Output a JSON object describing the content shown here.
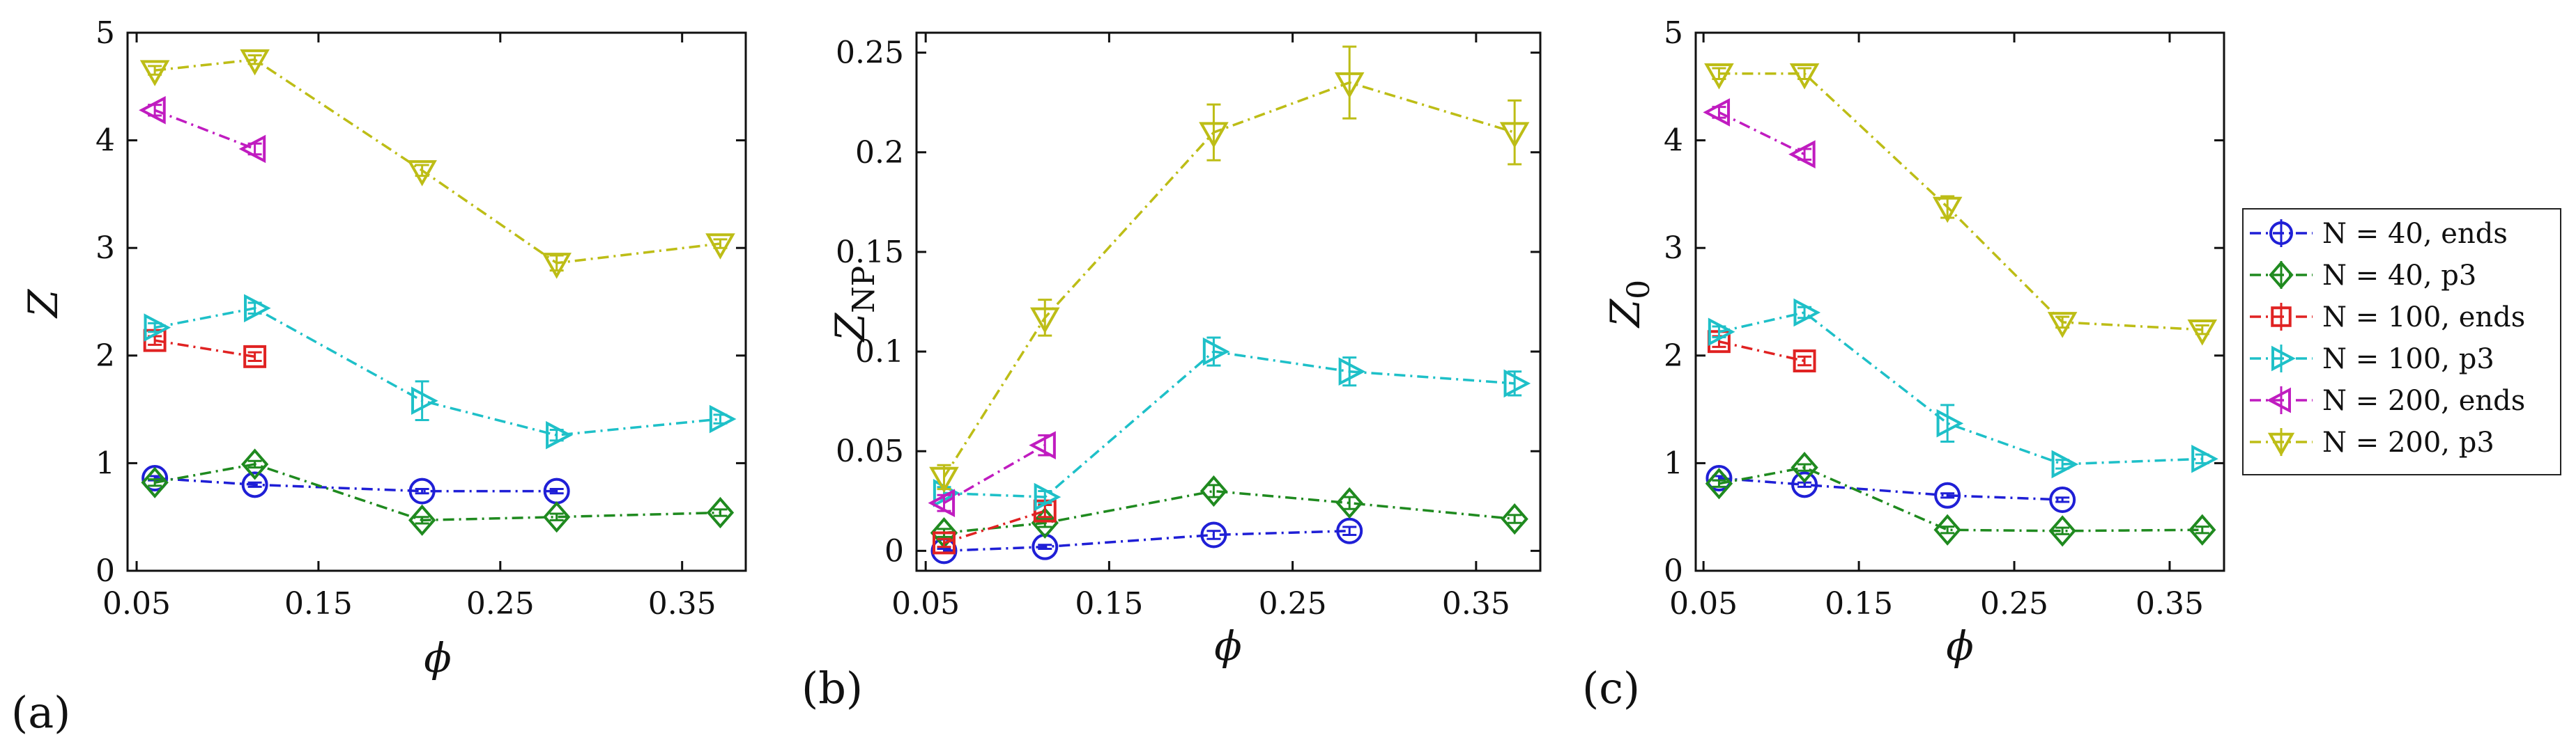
{
  "figure": {
    "panel_labels": [
      "(a)",
      "(b)",
      "(c)"
    ]
  },
  "legend": {
    "items": [
      {
        "label": "N = 40, ends",
        "color": "#1f1fd6",
        "marker": "circle"
      },
      {
        "label": "N = 40, p3",
        "color": "#1f8a1f",
        "marker": "diamond"
      },
      {
        "label": "N = 100, ends",
        "color": "#e02222",
        "marker": "square"
      },
      {
        "label": "N = 100, p3",
        "color": "#1ec0c8",
        "marker": "triangle-right"
      },
      {
        "label": "N = 200, ends",
        "color": "#c01cc0",
        "marker": "triangle-left"
      },
      {
        "label": "N = 200, p3",
        "color": "#bdbd16",
        "marker": "triangle-down"
      }
    ]
  },
  "chart_data": [
    {
      "type": "line",
      "panel": "(a)",
      "xlabel": "ϕ",
      "ylabel": "Z",
      "ylabel_sub": "",
      "xlim": [
        0.045,
        0.385
      ],
      "ylim": [
        0,
        5
      ],
      "xticks": [
        0.05,
        0.15,
        0.25,
        0.35
      ],
      "xtick_labels": [
        "0.05",
        "0.15",
        "0.25",
        "0.35"
      ],
      "yticks": [
        0,
        1,
        2,
        3,
        4,
        5
      ],
      "ytick_labels": [
        "0",
        "1",
        "2",
        "3",
        "4",
        "5"
      ],
      "series": [
        {
          "name": "N = 40, ends",
          "x": [
            0.06,
            0.115,
            0.207,
            0.281
          ],
          "y": [
            0.86,
            0.8,
            0.74,
            0.74
          ],
          "err": [
            0.02,
            0.02,
            0.02,
            0.02
          ]
        },
        {
          "name": "N = 40, p3",
          "x": [
            0.06,
            0.115,
            0.207,
            0.281,
            0.371
          ],
          "y": [
            0.82,
            0.99,
            0.47,
            0.5,
            0.54
          ],
          "err": [
            0.03,
            0.03,
            0.03,
            0.03,
            0.03
          ]
        },
        {
          "name": "N = 100, ends",
          "x": [
            0.06,
            0.115
          ],
          "y": [
            2.14,
            1.99
          ],
          "err": [
            0.04,
            0.04
          ]
        },
        {
          "name": "N = 100, p3",
          "x": [
            0.06,
            0.115,
            0.207,
            0.281,
            0.371
          ],
          "y": [
            2.26,
            2.44,
            1.58,
            1.26,
            1.41
          ],
          "err": [
            0.04,
            0.05,
            0.18,
            0.05,
            0.04
          ]
        },
        {
          "name": "N = 200, ends",
          "x": [
            0.06,
            0.115
          ],
          "y": [
            4.28,
            3.92
          ],
          "err": [
            0.05,
            0.05
          ]
        },
        {
          "name": "N = 200, p3",
          "x": [
            0.06,
            0.115,
            0.207,
            0.281,
            0.371
          ],
          "y": [
            4.65,
            4.75,
            3.72,
            2.86,
            3.04
          ],
          "err": [
            0.04,
            0.04,
            0.05,
            0.07,
            0.04
          ]
        }
      ]
    },
    {
      "type": "line",
      "panel": "(b)",
      "xlabel": "ϕ",
      "ylabel": "Z",
      "ylabel_sub": "NP",
      "xlim": [
        0.045,
        0.385
      ],
      "ylim": [
        -0.01,
        0.26
      ],
      "xticks": [
        0.05,
        0.15,
        0.25,
        0.35
      ],
      "xtick_labels": [
        "0.05",
        "0.15",
        "0.25",
        "0.35"
      ],
      "yticks": [
        0,
        0.05,
        0.1,
        0.15,
        0.2,
        0.25
      ],
      "ytick_labels": [
        "0",
        "0.05",
        "0.1",
        "0.15",
        "0.2",
        "0.25"
      ],
      "series": [
        {
          "name": "N = 40, ends",
          "x": [
            0.06,
            0.115,
            0.207,
            0.281
          ],
          "y": [
            0.0,
            0.002,
            0.008,
            0.01
          ],
          "err": [
            0.001,
            0.001,
            0.002,
            0.002
          ]
        },
        {
          "name": "N = 40, p3",
          "x": [
            0.06,
            0.115,
            0.207,
            0.281,
            0.371
          ],
          "y": [
            0.009,
            0.014,
            0.03,
            0.024,
            0.016
          ],
          "err": [
            0.002,
            0.002,
            0.003,
            0.003,
            0.002
          ]
        },
        {
          "name": "N = 100, ends",
          "x": [
            0.06,
            0.115
          ],
          "y": [
            0.004,
            0.02
          ],
          "err": [
            0.002,
            0.003
          ]
        },
        {
          "name": "N = 100, p3",
          "x": [
            0.06,
            0.115,
            0.207,
            0.281,
            0.371
          ],
          "y": [
            0.029,
            0.027,
            0.1,
            0.09,
            0.084
          ],
          "err": [
            0.003,
            0.003,
            0.007,
            0.007,
            0.006
          ]
        },
        {
          "name": "N = 200, ends",
          "x": [
            0.06,
            0.115
          ],
          "y": [
            0.024,
            0.053
          ],
          "err": [
            0.004,
            0.005
          ]
        },
        {
          "name": "N = 200, p3",
          "x": [
            0.06,
            0.115,
            0.207,
            0.281,
            0.371
          ],
          "y": [
            0.037,
            0.117,
            0.21,
            0.235,
            0.21
          ],
          "err": [
            0.006,
            0.009,
            0.014,
            0.018,
            0.016
          ]
        }
      ]
    },
    {
      "type": "line",
      "panel": "(c)",
      "xlabel": "ϕ",
      "ylabel": "Z",
      "ylabel_sub": "0",
      "xlim": [
        0.045,
        0.385
      ],
      "ylim": [
        0,
        5
      ],
      "xticks": [
        0.05,
        0.15,
        0.25,
        0.35
      ],
      "xtick_labels": [
        "0.05",
        "0.15",
        "0.25",
        "0.35"
      ],
      "yticks": [
        0,
        1,
        2,
        3,
        4,
        5
      ],
      "ytick_labels": [
        "0",
        "1",
        "2",
        "3",
        "4",
        "5"
      ],
      "series": [
        {
          "name": "N = 40, ends",
          "x": [
            0.06,
            0.115,
            0.207,
            0.281
          ],
          "y": [
            0.86,
            0.8,
            0.7,
            0.66
          ],
          "err": [
            0.02,
            0.02,
            0.02,
            0.02
          ]
        },
        {
          "name": "N = 40, p3",
          "x": [
            0.06,
            0.115,
            0.207,
            0.281,
            0.371
          ],
          "y": [
            0.81,
            0.96,
            0.38,
            0.37,
            0.38
          ],
          "err": [
            0.03,
            0.03,
            0.03,
            0.03,
            0.03
          ]
        },
        {
          "name": "N = 100, ends",
          "x": [
            0.06,
            0.115
          ],
          "y": [
            2.13,
            1.95
          ],
          "err": [
            0.05,
            0.04
          ]
        },
        {
          "name": "N = 100, p3",
          "x": [
            0.06,
            0.115,
            0.207,
            0.281,
            0.371
          ],
          "y": [
            2.22,
            2.4,
            1.37,
            0.99,
            1.04
          ],
          "err": [
            0.05,
            0.05,
            0.17,
            0.04,
            0.04
          ]
        },
        {
          "name": "N = 200, ends",
          "x": [
            0.06,
            0.115
          ],
          "y": [
            4.26,
            3.87
          ],
          "err": [
            0.05,
            0.05
          ]
        },
        {
          "name": "N = 200, p3",
          "x": [
            0.06,
            0.115,
            0.207,
            0.281,
            0.371
          ],
          "y": [
            4.62,
            4.62,
            3.38,
            2.31,
            2.24
          ],
          "err": [
            0.05,
            0.05,
            0.1,
            0.05,
            0.04
          ]
        }
      ]
    }
  ]
}
